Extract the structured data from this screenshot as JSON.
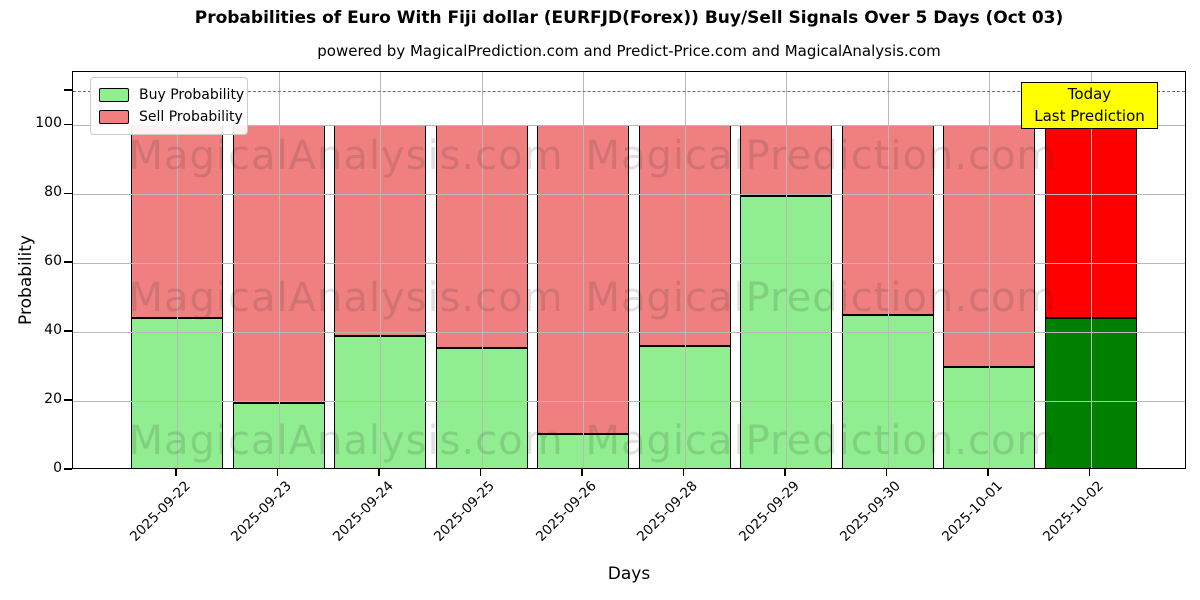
{
  "title": "Probabilities of Euro With Fiji dollar (EURFJD(Forex)) Buy/Sell Signals Over 5 Days (Oct 03)",
  "subtitle": "powered by MagicalPrediction.com and Predict-Price.com and MagicalAnalysis.com",
  "axes": {
    "ylabel": "Probability",
    "xlabel": "Days",
    "yticks": [
      0,
      20,
      40,
      60,
      80,
      100
    ],
    "extra_tick": 110,
    "ylim": [
      0,
      115.5
    ],
    "dashed_line_y": 110
  },
  "legend": [
    {
      "label": "Buy Probability",
      "color": "#90EE90"
    },
    {
      "label": "Sell Probability",
      "color": "#F08080"
    }
  ],
  "annotation": {
    "lines": [
      "Today",
      "Last Prediction"
    ],
    "bg_color": "#FFFF00"
  },
  "watermarks": {
    "left_text": "MagicalAnalysis.com",
    "right_text": "MagicalPrediction.com"
  },
  "colors": {
    "buy": "#90EE90",
    "sell": "#F08080",
    "today_buy": "#008000",
    "today_sell": "#FF0000",
    "grid": "#b9b9b9",
    "annotation_bg": "#FFFF00"
  },
  "chart_data": {
    "type": "bar",
    "stacked": true,
    "title": "Probabilities of Euro With Fiji dollar (EURFJD(Forex)) Buy/Sell Signals Over 5 Days (Oct 03)",
    "xlabel": "Days",
    "ylabel": "Probability",
    "ylim": [
      0,
      115.5
    ],
    "grid": true,
    "legend_position": "upper left",
    "categories": [
      "2025-09-22",
      "2025-09-23",
      "2025-09-24",
      "2025-09-25",
      "2025-09-26",
      "2025-09-28",
      "2025-09-29",
      "2025-09-30",
      "2025-10-01",
      "2025-10-02"
    ],
    "series": [
      {
        "name": "Buy Probability",
        "color": "#90EE90",
        "values": [
          44,
          19.5,
          39,
          35.5,
          10.5,
          36,
          79.5,
          45,
          30,
          44
        ]
      },
      {
        "name": "Sell Probability",
        "color": "#F08080",
        "values": [
          56,
          80.5,
          61,
          64.5,
          89.5,
          64,
          20.5,
          55,
          70,
          56
        ]
      }
    ],
    "today_bar": {
      "category": "2025-10-02",
      "index": 9,
      "buy_color": "#008000",
      "sell_color": "#FF0000"
    },
    "threshold_line": {
      "y": 110,
      "style": "dashed",
      "color": "gray"
    }
  }
}
